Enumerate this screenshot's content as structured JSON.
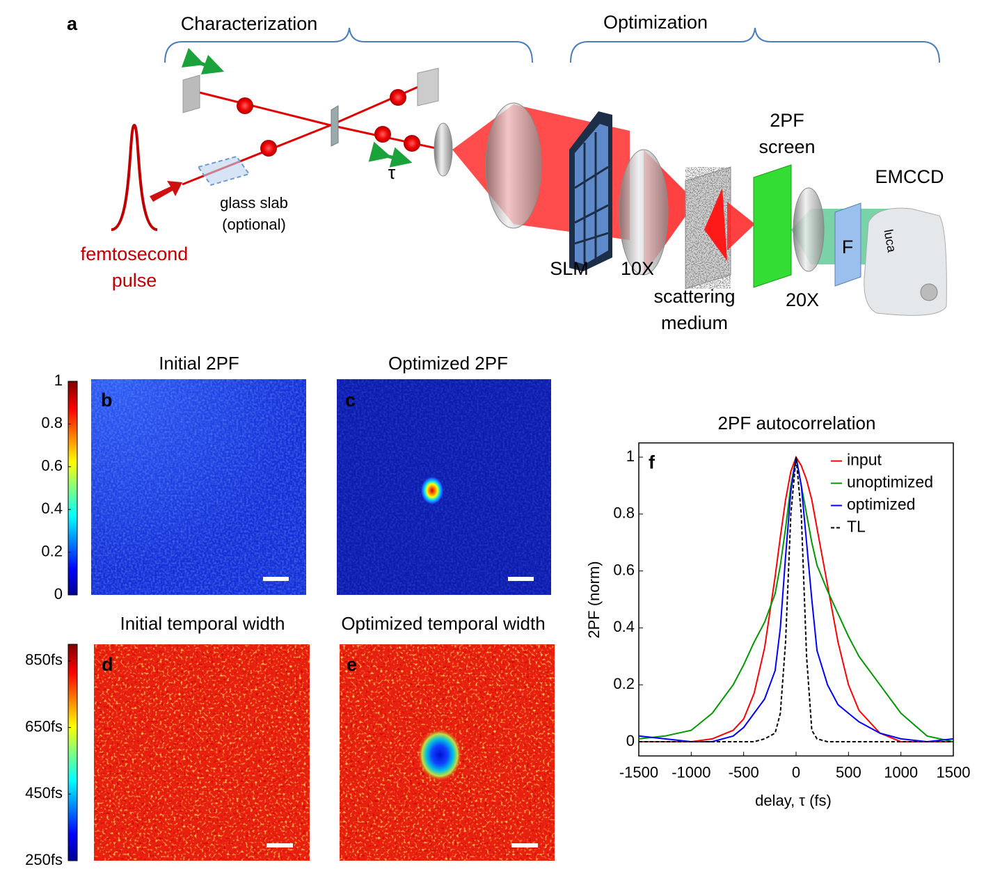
{
  "diagram": {
    "label": "a",
    "characterization": "Characterization",
    "optimization": "Optimization",
    "delay_symbol": "τ",
    "glass_slab": [
      "glass slab",
      "(optional)"
    ],
    "source": [
      "femtosecond",
      "pulse"
    ],
    "screen": [
      "2PF",
      "screen"
    ],
    "camera": "EMCCD",
    "camera_brand": "luca",
    "slm": "SLM",
    "objective_1": "10X",
    "medium": [
      "scattering",
      "medium"
    ],
    "objective_2": "20X",
    "filter": "F"
  },
  "panels": [
    {
      "label": "b",
      "title": "Initial 2PF"
    },
    {
      "label": "c",
      "title": "Optimized 2PF"
    },
    {
      "label": "d",
      "title": "Initial temporal width"
    },
    {
      "label": "e",
      "title": "Optimized temporal width"
    }
  ],
  "colorbars": [
    {
      "lim": [
        0,
        1
      ],
      "ticks": [
        0,
        0.2,
        0.4,
        0.6,
        0.8,
        1
      ]
    },
    {
      "lim": [
        250,
        900
      ],
      "ticks": [
        {
          "value": 250,
          "label": "250fs"
        },
        {
          "value": 450,
          "label": "450fs"
        },
        {
          "value": 650,
          "label": "650fs"
        },
        {
          "value": 850,
          "label": "850fs"
        }
      ]
    }
  ],
  "chart_data": {
    "type": "line",
    "label": "f",
    "title": "2PF autocorrelation",
    "x_label": "delay, τ (fs)",
    "y_label": "2PF (norm)",
    "x": [
      -1500,
      -1250,
      -1000,
      -800,
      -600,
      -500,
      -400,
      -300,
      -200,
      -150,
      -100,
      -50,
      0,
      50,
      100,
      150,
      200,
      300,
      400,
      500,
      600,
      800,
      1000,
      1250,
      1500
    ],
    "series": [
      {
        "name": "input",
        "color": "#ff0000",
        "values": [
          0,
          0,
          0,
          0.01,
          0.04,
          0.08,
          0.17,
          0.33,
          0.58,
          0.72,
          0.85,
          0.95,
          1,
          0.97,
          0.92,
          0.85,
          0.75,
          0.55,
          0.35,
          0.2,
          0.11,
          0.03,
          0,
          0,
          0
        ]
      },
      {
        "name": "unoptimized",
        "color": "#009900",
        "values": [
          0.01,
          0.02,
          0.04,
          0.1,
          0.2,
          0.27,
          0.35,
          0.42,
          0.52,
          0.62,
          0.75,
          0.9,
          1,
          0.9,
          0.8,
          0.7,
          0.62,
          0.53,
          0.45,
          0.37,
          0.3,
          0.2,
          0.1,
          0.02,
          0
        ]
      },
      {
        "name": "optimized",
        "color": "#0000ff",
        "values": [
          0.02,
          0.01,
          0,
          0,
          0.02,
          0.05,
          0.1,
          0.15,
          0.25,
          0.4,
          0.65,
          0.88,
          1,
          0.9,
          0.7,
          0.5,
          0.32,
          0.2,
          0.13,
          0.1,
          0.07,
          0.03,
          0.01,
          0,
          0.01
        ]
      },
      {
        "name": "TL",
        "color": "#000000",
        "style": "dashed",
        "values": [
          0,
          0,
          0,
          0,
          0,
          0,
          0,
          0.01,
          0.03,
          0.1,
          0.35,
          0.8,
          1,
          0.8,
          0.3,
          0.04,
          0.01,
          0,
          0,
          0,
          0,
          0,
          0,
          0,
          0
        ]
      }
    ],
    "xlim": [
      -1500,
      1500
    ],
    "ylim": [
      -0.05,
      1.05
    ],
    "xticks": [
      -1500,
      -1000,
      -500,
      0,
      500,
      1000,
      1500
    ],
    "yticks": [
      0,
      0.2,
      0.4,
      0.6,
      0.8,
      1
    ],
    "grid": false,
    "legend": "upper right"
  }
}
